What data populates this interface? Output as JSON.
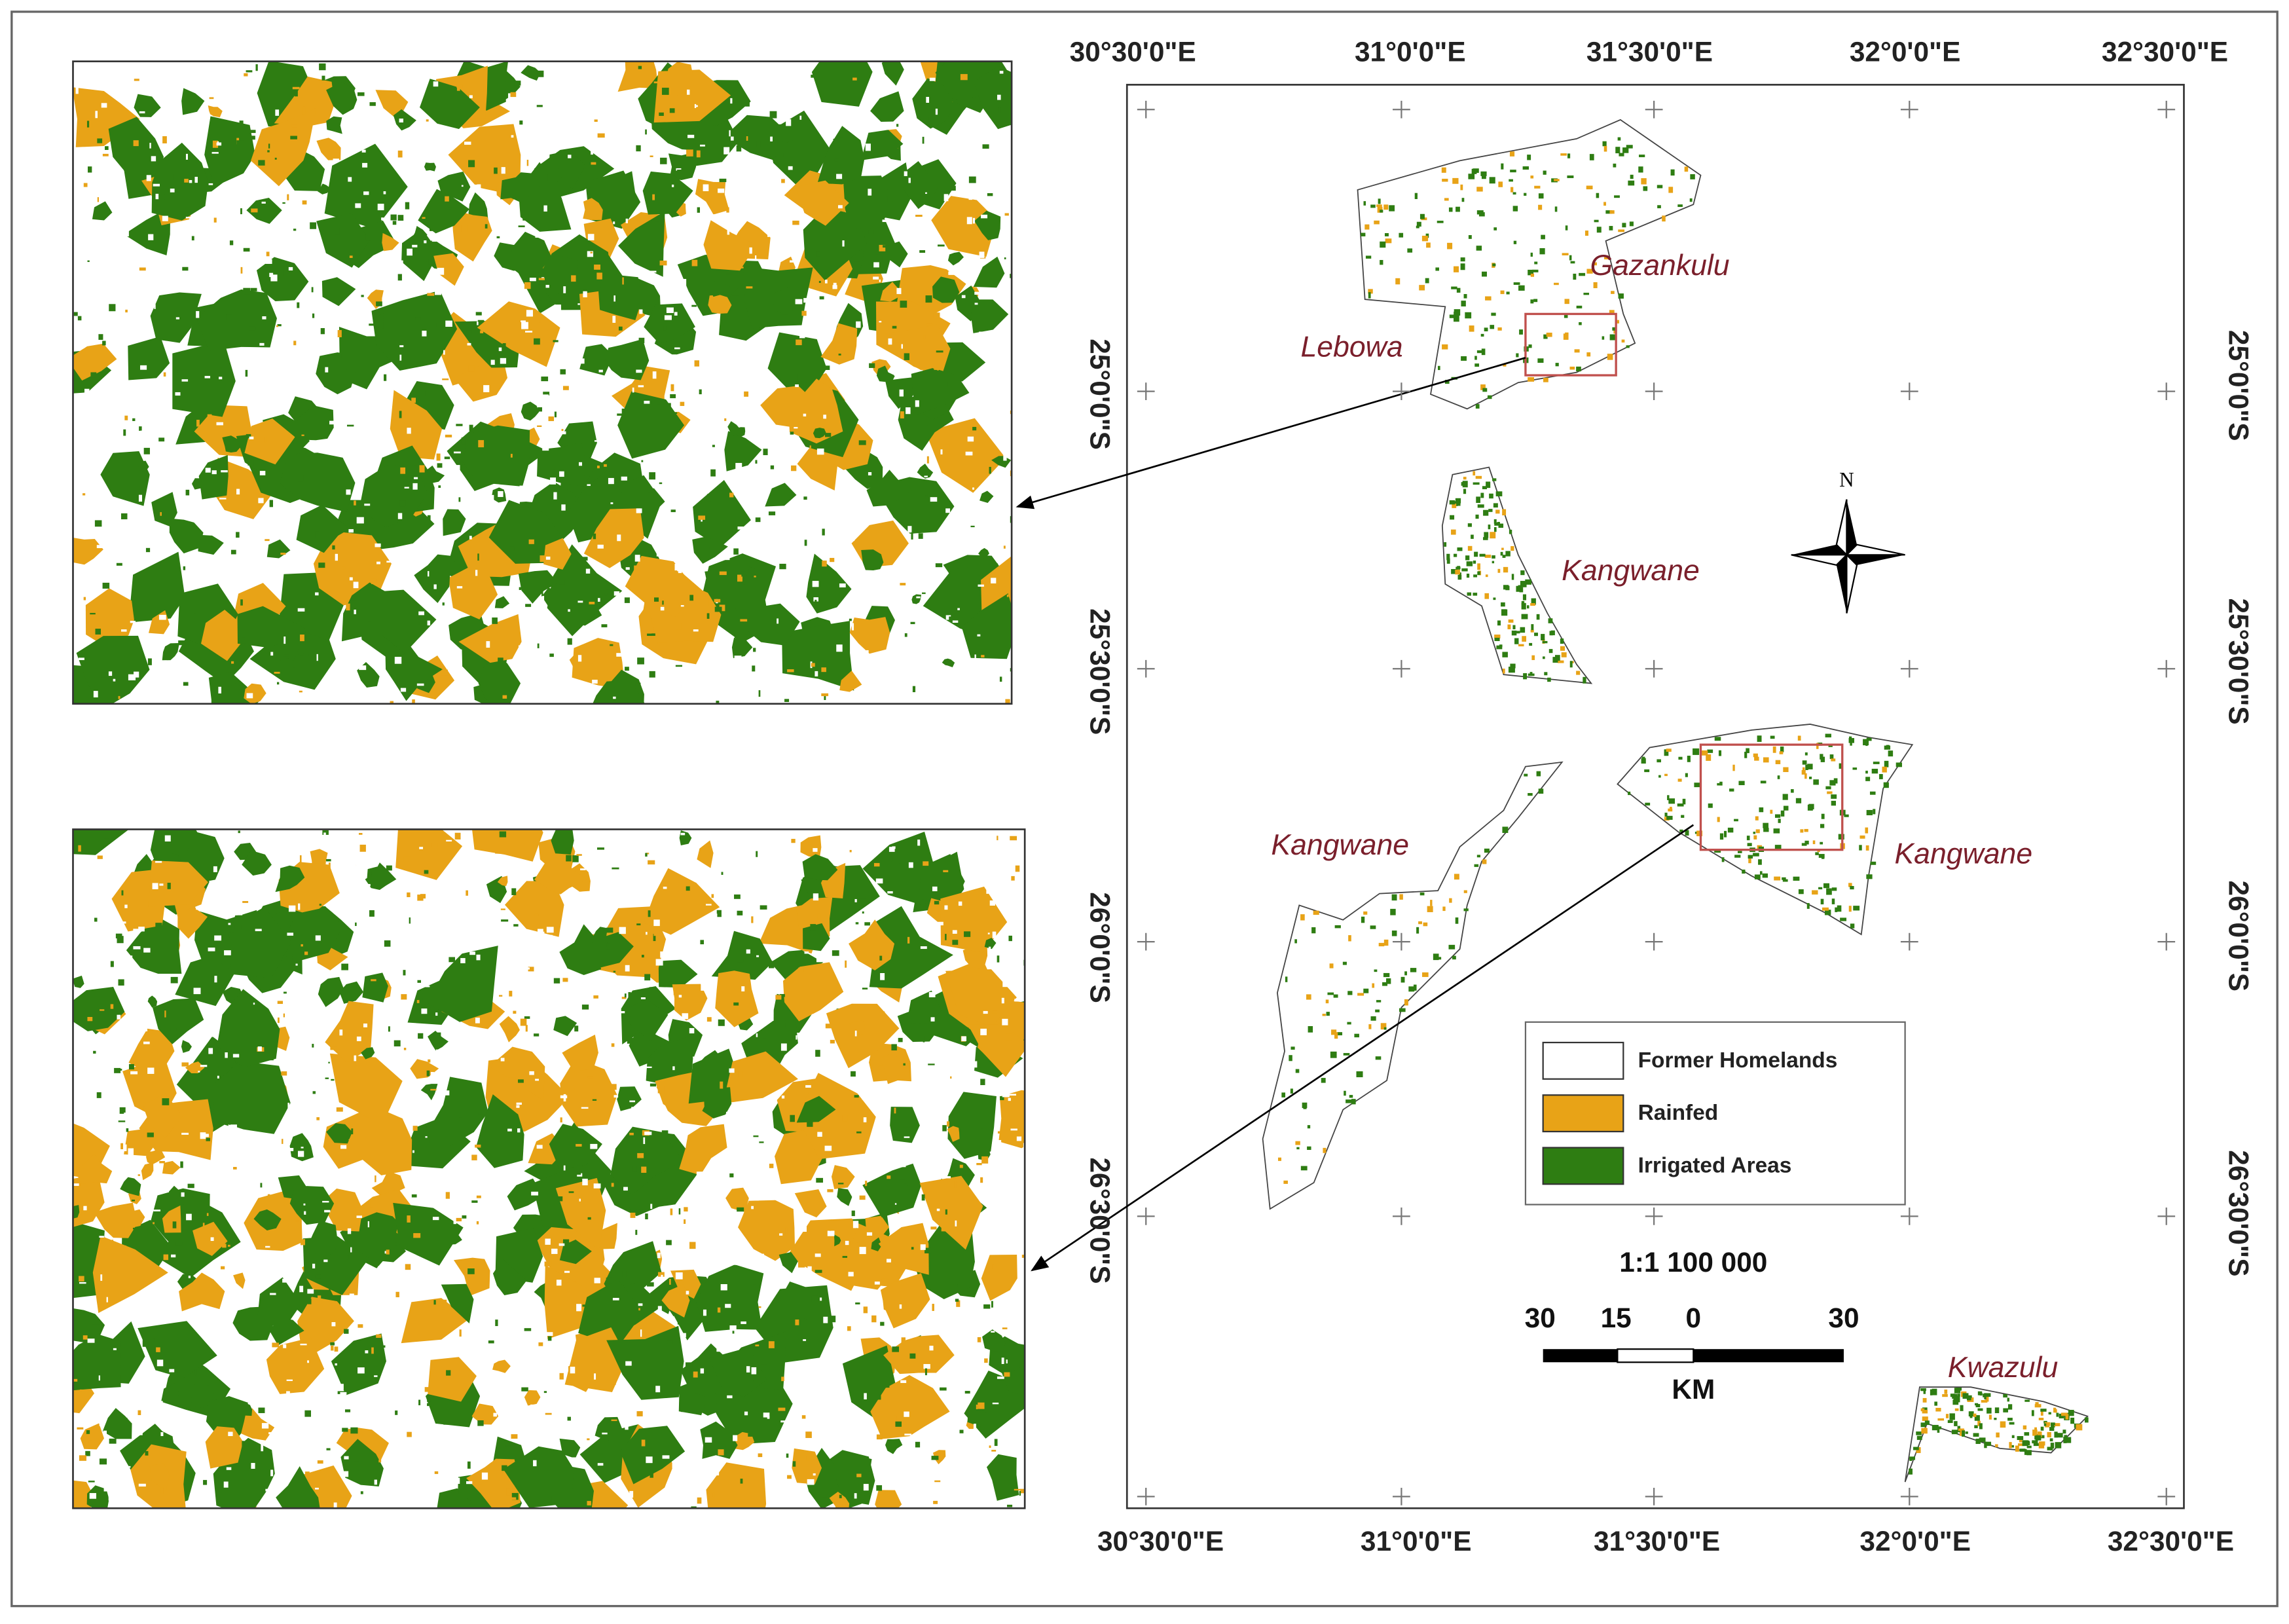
{
  "graticule": {
    "longitudes": [
      "30°30'0\"E",
      "31°0'0\"E",
      "31°30'0\"E",
      "32°0'0\"E",
      "32°30'0\"E"
    ],
    "latitudes": [
      "25°0'0\"S",
      "25°30'0\"S",
      "26°0'0\"S",
      "26°30'0\"S"
    ]
  },
  "regions": [
    "Gazankulu",
    "Lebowa",
    "Kangwane",
    "Kangwane",
    "Kangwane",
    "Kwazulu"
  ],
  "legend": [
    "Former Homelands",
    "Rainfed",
    "Irrigated Areas"
  ],
  "scale": {
    "ratio": "1:1 100 000",
    "ticks": [
      "30",
      "15",
      "0",
      "30"
    ],
    "unit": "KM"
  },
  "north": "N"
}
